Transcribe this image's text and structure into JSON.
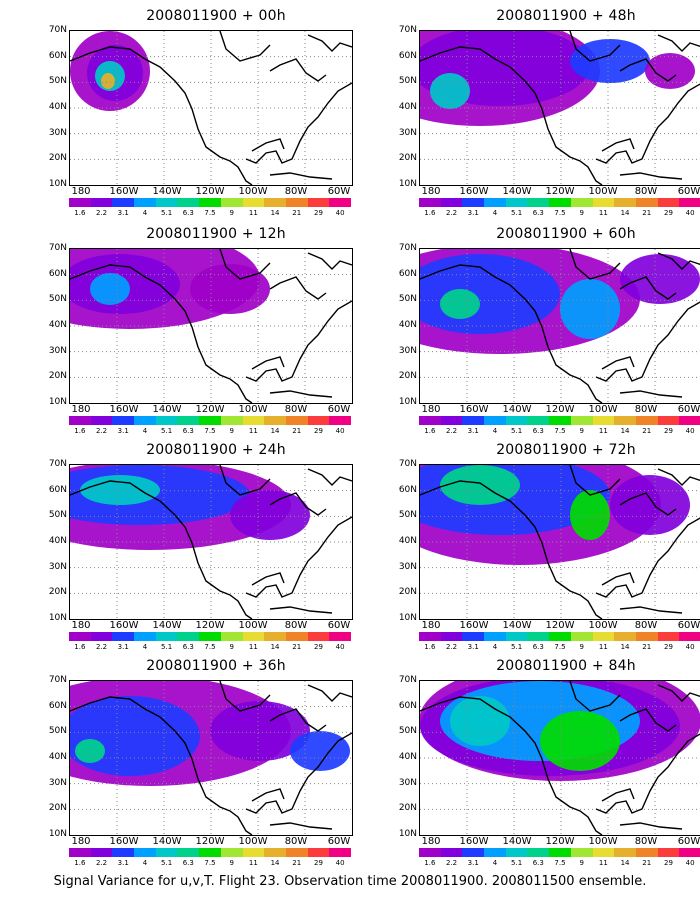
{
  "panels": [
    {
      "title": "2008011900 + 00h"
    },
    {
      "title": "2008011900 + 48h"
    },
    {
      "title": "2008011900 + 12h"
    },
    {
      "title": "2008011900 + 60h"
    },
    {
      "title": "2008011900 + 24h"
    },
    {
      "title": "2008011900 + 72h"
    },
    {
      "title": "2008011900 + 36h"
    },
    {
      "title": "2008011900 + 84h"
    }
  ],
  "lat_labels": [
    "70N",
    "60N",
    "50N",
    "40N",
    "30N",
    "20N",
    "10N"
  ],
  "lon_labels": [
    "180",
    "160W",
    "140W",
    "120W",
    "100W",
    "80W",
    "60W"
  ],
  "colorbar": {
    "labels": [
      "1.6",
      "2.2",
      "3.1",
      "4",
      "5.1",
      "6.3",
      "7.5",
      "9",
      "11",
      "14",
      "21",
      "29",
      "40"
    ],
    "colors": [
      "#a000c8",
      "#8200dc",
      "#1e3cff",
      "#00a0ff",
      "#00c8c8",
      "#00d28c",
      "#00dc00",
      "#a0e632",
      "#e6dc32",
      "#e6af2d",
      "#f08228",
      "#fa3c3c",
      "#f00082"
    ]
  },
  "caption": "Signal Variance for u,v,T. Flight 23. Observation time 2008011900. 2008011500 ensemble."
}
